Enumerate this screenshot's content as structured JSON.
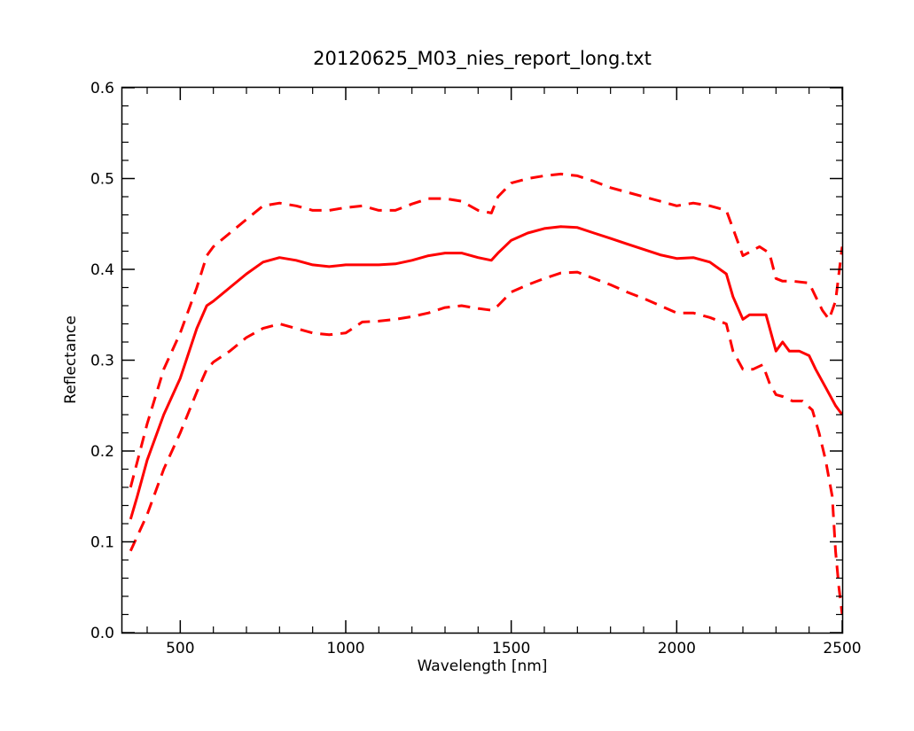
{
  "chart_data": {
    "type": "line",
    "title": "20120625_M03_nies_report_long.txt",
    "xlabel": "Wavelength [nm]",
    "ylabel": "Reflectance",
    "xlim": [
      325,
      2500
    ],
    "ylim": [
      0.0,
      0.6
    ],
    "xticks": [
      500,
      1000,
      1500,
      2000,
      2500
    ],
    "xtick_labels": [
      "500",
      "1000",
      "1500",
      "2000",
      "2500"
    ],
    "yticks": [
      0.0,
      0.1,
      0.2,
      0.3,
      0.4,
      0.5,
      0.6
    ],
    "ytick_labels": [
      "0.0",
      "0.1",
      "0.2",
      "0.3",
      "0.4",
      "0.5",
      "0.6"
    ],
    "grid": false,
    "legend": "none",
    "color": "#ff0000",
    "series": [
      {
        "style": "dashed",
        "x": [
          350,
          400,
          450,
          500,
          550,
          580,
          600,
          650,
          700,
          750,
          800,
          850,
          900,
          950,
          1000,
          1050,
          1100,
          1150,
          1200,
          1250,
          1300,
          1350,
          1400,
          1440,
          1460,
          1500,
          1550,
          1600,
          1650,
          1700,
          1750,
          1800,
          1850,
          1900,
          1950,
          2000,
          2050,
          2100,
          2150,
          2170,
          2200,
          2250,
          2280,
          2300,
          2320,
          2350,
          2400,
          2420,
          2440,
          2460,
          2480,
          2500
        ],
        "y": [
          0.16,
          0.23,
          0.29,
          0.33,
          0.38,
          0.415,
          0.425,
          0.44,
          0.455,
          0.47,
          0.473,
          0.47,
          0.465,
          0.465,
          0.468,
          0.47,
          0.465,
          0.465,
          0.472,
          0.478,
          0.478,
          0.475,
          0.465,
          0.462,
          0.48,
          0.495,
          0.5,
          0.503,
          0.505,
          0.503,
          0.497,
          0.49,
          0.485,
          0.48,
          0.475,
          0.47,
          0.473,
          0.47,
          0.465,
          0.445,
          0.415,
          0.425,
          0.418,
          0.39,
          0.387,
          0.387,
          0.385,
          0.37,
          0.355,
          0.345,
          0.365,
          0.425
        ]
      },
      {
        "style": "solid",
        "x": [
          350,
          370,
          400,
          450,
          500,
          550,
          580,
          600,
          650,
          700,
          750,
          800,
          850,
          900,
          950,
          1000,
          1050,
          1100,
          1150,
          1200,
          1250,
          1300,
          1350,
          1400,
          1440,
          1460,
          1480,
          1500,
          1550,
          1600,
          1650,
          1700,
          1750,
          1800,
          1850,
          1900,
          1950,
          2000,
          2050,
          2100,
          2150,
          2170,
          2200,
          2220,
          2250,
          2270,
          2300,
          2320,
          2340,
          2370,
          2400,
          2420,
          2450,
          2480,
          2500
        ],
        "y": [
          0.125,
          0.15,
          0.19,
          0.24,
          0.28,
          0.335,
          0.36,
          0.365,
          0.38,
          0.395,
          0.408,
          0.413,
          0.41,
          0.405,
          0.403,
          0.405,
          0.405,
          0.405,
          0.406,
          0.41,
          0.415,
          0.418,
          0.418,
          0.413,
          0.41,
          0.418,
          0.425,
          0.432,
          0.44,
          0.445,
          0.447,
          0.446,
          0.44,
          0.434,
          0.428,
          0.422,
          0.416,
          0.412,
          0.413,
          0.408,
          0.395,
          0.37,
          0.345,
          0.35,
          0.35,
          0.35,
          0.31,
          0.32,
          0.31,
          0.31,
          0.305,
          0.29,
          0.27,
          0.25,
          0.24
        ]
      },
      {
        "style": "dashed",
        "x": [
          350,
          400,
          450,
          500,
          550,
          580,
          600,
          650,
          700,
          750,
          800,
          850,
          900,
          950,
          1000,
          1050,
          1100,
          1150,
          1200,
          1250,
          1300,
          1350,
          1400,
          1440,
          1460,
          1500,
          1550,
          1600,
          1650,
          1700,
          1750,
          1800,
          1850,
          1900,
          1950,
          2000,
          2050,
          2100,
          2150,
          2170,
          2200,
          2230,
          2260,
          2280,
          2300,
          2320,
          2350,
          2380,
          2410,
          2430,
          2450,
          2470,
          2480,
          2490,
          2500
        ],
        "y": [
          0.09,
          0.13,
          0.18,
          0.22,
          0.265,
          0.29,
          0.298,
          0.31,
          0.325,
          0.335,
          0.34,
          0.335,
          0.33,
          0.328,
          0.33,
          0.342,
          0.343,
          0.345,
          0.348,
          0.352,
          0.358,
          0.36,
          0.357,
          0.355,
          0.36,
          0.375,
          0.383,
          0.39,
          0.396,
          0.397,
          0.39,
          0.383,
          0.375,
          0.368,
          0.36,
          0.352,
          0.352,
          0.347,
          0.34,
          0.31,
          0.29,
          0.29,
          0.295,
          0.275,
          0.262,
          0.26,
          0.255,
          0.255,
          0.245,
          0.22,
          0.19,
          0.15,
          0.09,
          0.05,
          0.02
        ]
      }
    ]
  }
}
